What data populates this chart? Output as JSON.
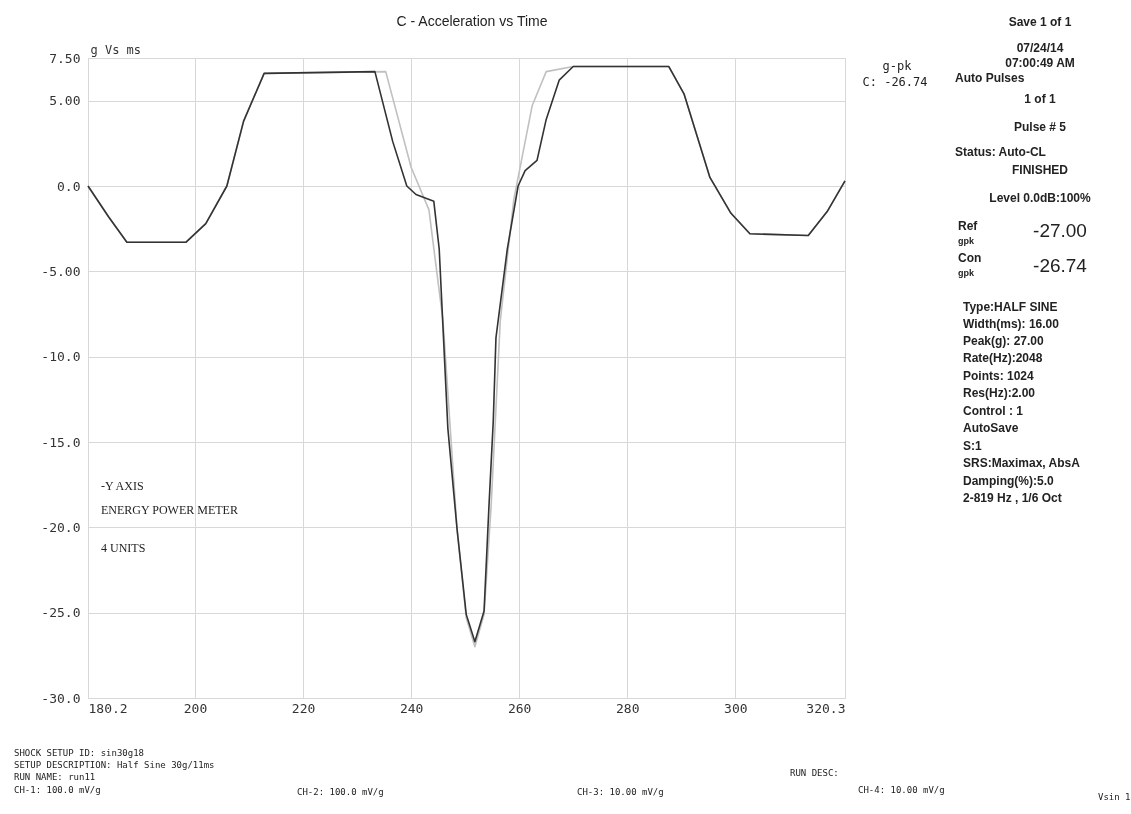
{
  "chart_data": {
    "type": "line",
    "title": "C - Acceleration vs Time",
    "ylabel": "g Vs ms",
    "xlim": [
      180.2,
      320.3
    ],
    "xticks": [
      180.2,
      200,
      220,
      240,
      260,
      280,
      300,
      320.3
    ],
    "ylim": [
      -30,
      7.5
    ],
    "yticks": [
      {
        "value": 7.5,
        "label": "7.50"
      },
      {
        "value": 5,
        "label": "5.00"
      },
      {
        "value": 0,
        "label": "0.0"
      },
      {
        "value": -5,
        "label": "-5.00"
      },
      {
        "value": -10,
        "label": "-10.0"
      },
      {
        "value": -15,
        "label": "-15.0"
      },
      {
        "value": -20,
        "label": "-20.0"
      },
      {
        "value": -25,
        "label": "-25.0"
      },
      {
        "value": -30,
        "label": "-30.0"
      }
    ],
    "grid": true,
    "line_style": "solid",
    "series": [
      {
        "color": "#c0c0c0",
        "x": [
          180.2,
          184,
          187.4,
          198.3,
          202,
          205.9,
          209,
          212.8,
          235.3,
          240,
          243.3,
          245.9,
          248.5,
          250.2,
          251.8,
          253.5,
          254.8,
          256.5,
          259,
          262.4,
          265,
          270,
          287.7,
          290.5,
          295.3,
          299.2,
          302.7,
          313.5,
          317,
          320.3
        ],
        "values": [
          0,
          -1.8,
          -3.3,
          -3.3,
          -2.2,
          0,
          3.8,
          6.6,
          6.7,
          1.1,
          -1.4,
          -7.9,
          -20.1,
          -25.3,
          -27.0,
          -25.1,
          -18.8,
          -7.9,
          -0.8,
          4.7,
          6.7,
          7.0,
          7.0,
          5.4,
          0.5,
          -1.6,
          -2.8,
          -2.9,
          -1.5,
          0.3
        ]
      },
      {
        "color": "#333333",
        "x": [
          180.2,
          184,
          187.4,
          198.3,
          202,
          205.9,
          209,
          212.8,
          233.3,
          236.6,
          239.2,
          240.9,
          244.2,
          245.2,
          246.8,
          248.5,
          250.2,
          251.8,
          253.5,
          254.4,
          255.2,
          255.7,
          257.8,
          259.8,
          261.1,
          263.3,
          265,
          267.4,
          270,
          287.7,
          290.5,
          295.3,
          299.2,
          302.7,
          313.5,
          317,
          320.3
        ],
        "values": [
          0,
          -1.8,
          -3.3,
          -3.3,
          -2.2,
          0,
          3.8,
          6.6,
          6.7,
          2.6,
          0,
          -0.5,
          -0.9,
          -3.7,
          -14.2,
          -20.1,
          -25.1,
          -26.7,
          -24.9,
          -18.8,
          -13.8,
          -8.9,
          -3.7,
          0,
          0.9,
          1.5,
          3.9,
          6.2,
          7.0,
          7.0,
          5.4,
          0.5,
          -1.6,
          -2.8,
          -2.9,
          -1.5,
          0.3
        ]
      }
    ],
    "annotations": [
      "g-pk",
      "C: -26.74",
      "-Y AXIS",
      "ENERGY POWER METER",
      "4 UNITS",
      "Save 1 of 1",
      "07/24/14",
      "07:00:49 AM",
      "Auto Pulses",
      "1 of 1",
      "Pulse # 5",
      "Status: Auto-CL",
      "FINISHED",
      "Level 0.0dB:100%",
      "Ref",
      "gpk",
      "-27.00",
      "Con",
      "gpk",
      "-26.74",
      "Type:HALF SINE",
      "Width(ms): 16.00",
      "Peak(g): 27.00",
      "Rate(Hz):2048",
      "Points: 1024",
      "Res(Hz):2.00",
      "Control : 1",
      "AutoSave",
      "S:1",
      "SRS:Maximax, AbsA",
      "Damping(%):5.0",
      "2-819 Hz , 1/6 Oct",
      "SHOCK SETUP ID: sin30g18",
      "SETUP DESCRIPTION: Half Sine 30g/11ms",
      "RUN NAME: run11",
      "CH-1: 100.0 mV/g",
      "CH-2: 100.0 mV/g",
      "CH-3: 10.00 mV/g",
      "RUN DESC:",
      "CH-4: 10.00 mV/g",
      "Vsin 1"
    ]
  }
}
